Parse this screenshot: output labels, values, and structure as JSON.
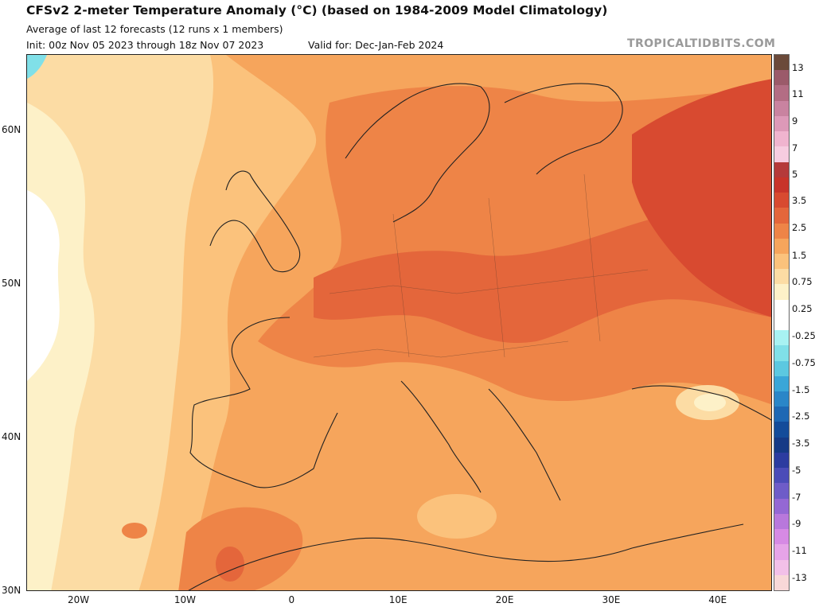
{
  "header": {
    "title": "CFSv2 2-meter Temperature Anomaly (°C) (based on 1984-2009 Model Climatology)",
    "subtitle": "Average of last 12 forecasts (12 runs x 1 members)",
    "init": "Init: 00z Nov 05 2023 through 18z Nov 07 2023",
    "valid": "Valid for: Dec-Jan-Feb 2024",
    "brand": "TROPICALTIDBITS.COM"
  },
  "map": {
    "lat_labels": [
      "60N",
      "50N",
      "40N",
      "30N"
    ],
    "lon_labels": [
      "20W",
      "10W",
      "0",
      "10E",
      "20E",
      "30E",
      "40E"
    ],
    "lat_values": [
      60,
      50,
      40,
      30
    ],
    "lon_values": [
      -20,
      -10,
      0,
      10,
      20,
      30,
      40
    ]
  },
  "colorbar": {
    "labels": [
      "13",
      "11",
      "9",
      "7",
      "5",
      "3.5",
      "2.5",
      "1.5",
      "0.75",
      "0.25",
      "-0.25",
      "-0.75",
      "-1.5",
      "-2.5",
      "-3.5",
      "-5",
      "-7",
      "-9",
      "-11",
      "-13"
    ],
    "colors": [
      "#6b4a3a",
      "#9b5a6a",
      "#b36d84",
      "#c983a0",
      "#dd99b8",
      "#f0b4cf",
      "#f7cce0",
      "#b53a3a",
      "#c8342a",
      "#d84a30",
      "#e4663b",
      "#ee8447",
      "#f6a55c",
      "#fbc27c",
      "#fcdca4",
      "#fdf1c8",
      "#ffffff",
      "#ffffff",
      "#a8f2f2",
      "#80e0e8",
      "#5cc8e0",
      "#3aa6d8",
      "#2a86c8",
      "#1e68b4",
      "#144c9a",
      "#163a86",
      "#2c3ca0",
      "#4b4cb8",
      "#6e5cc8",
      "#9468d4",
      "#b878dc",
      "#d68ae4",
      "#e6a4e8",
      "#f2c0e8",
      "#f8d8d8"
    ]
  }
}
